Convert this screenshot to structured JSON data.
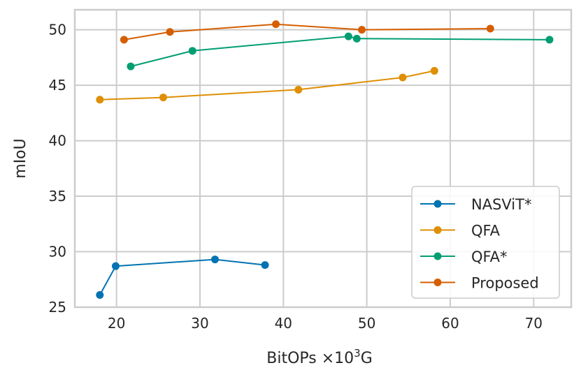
{
  "chart_data": {
    "type": "line",
    "xlabel_main": "BitOPs ×10",
    "xlabel_sup": "3",
    "xlabel_unit": "G",
    "ylabel": "mIoU",
    "xlim": [
      15,
      74.5
    ],
    "ylim": [
      25,
      51.8
    ],
    "xticks": [
      20,
      30,
      40,
      50,
      60,
      70
    ],
    "yticks": [
      25,
      30,
      35,
      40,
      45,
      50
    ],
    "grid": true,
    "legend_position": "lower-right",
    "series": [
      {
        "name": "NASViT*",
        "color": "#0173b2",
        "x": [
          18.0,
          19.9,
          31.8,
          37.8
        ],
        "y": [
          26.1,
          28.7,
          29.3,
          28.8
        ]
      },
      {
        "name": "QFA",
        "color": "#de8f05",
        "x": [
          18.0,
          25.6,
          41.8,
          54.3,
          58.1
        ],
        "y": [
          43.7,
          43.9,
          44.6,
          45.7,
          46.3
        ]
      },
      {
        "name": "QFA*",
        "color": "#029e73",
        "x": [
          21.7,
          29.1,
          47.8,
          48.8,
          71.9
        ],
        "y": [
          46.7,
          48.1,
          49.4,
          49.2,
          49.1
        ]
      },
      {
        "name": "Proposed",
        "color": "#d55e00",
        "x": [
          20.9,
          26.4,
          39.1,
          49.4,
          64.8
        ],
        "y": [
          49.1,
          49.8,
          50.5,
          50.0,
          50.1
        ]
      }
    ]
  }
}
